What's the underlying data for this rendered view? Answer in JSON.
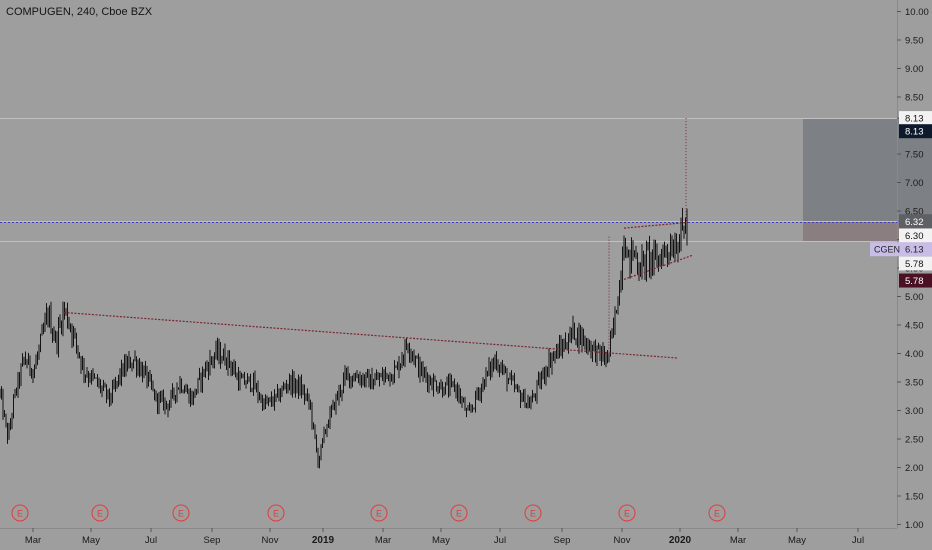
{
  "header": {
    "title": "COMPUGEN, 240, Cboe BZX"
  },
  "colors": {
    "background": "#9e9e9e",
    "candle": "#141414",
    "trendline": "#7a2430",
    "earnings": "#e03c3c",
    "target_zone": "#7b7f84",
    "stop_zone": "#8a7c80",
    "symbol_badge": "#c8bde6",
    "last_price_badge": "#0d1a2b",
    "stop_badge": "#4a1024"
  },
  "chart_data": {
    "type": "candlestick",
    "symbol": "CGEN",
    "x_ticks": [
      "Mar",
      "May",
      "Jul",
      "Sep",
      "Nov",
      "2019",
      "Mar",
      "May",
      "Jul",
      "Sep",
      "Nov",
      "2020",
      "Mar",
      "May",
      "Jul"
    ],
    "y_ticks": [
      "10.00",
      "9.50",
      "9.00",
      "8.50",
      "8.13",
      "7.50",
      "7.00",
      "6.50",
      "6.00",
      "5.50",
      "5.00",
      "4.50",
      "4.00",
      "3.50",
      "3.00",
      "2.50",
      "2.00",
      "1.50",
      "1.00"
    ],
    "ylim": [
      1.0,
      10.0
    ],
    "price_path": [
      [
        0,
        3.3
      ],
      [
        8,
        2.5
      ],
      [
        14,
        3.2
      ],
      [
        24,
        3.9
      ],
      [
        34,
        3.7
      ],
      [
        48,
        4.7
      ],
      [
        56,
        4.2
      ],
      [
        64,
        4.8
      ],
      [
        74,
        4.3
      ],
      [
        84,
        3.7
      ],
      [
        96,
        3.5
      ],
      [
        110,
        3.2
      ],
      [
        122,
        3.7
      ],
      [
        134,
        3.9
      ],
      [
        146,
        3.6
      ],
      [
        156,
        3.2
      ],
      [
        168,
        3.1
      ],
      [
        180,
        3.5
      ],
      [
        192,
        3.2
      ],
      [
        204,
        3.7
      ],
      [
        216,
        4.0
      ],
      [
        228,
        3.9
      ],
      [
        240,
        3.5
      ],
      [
        252,
        3.5
      ],
      [
        264,
        3.1
      ],
      [
        276,
        3.2
      ],
      [
        288,
        3.5
      ],
      [
        300,
        3.4
      ],
      [
        310,
        3.1
      ],
      [
        318,
        2.1
      ],
      [
        326,
        2.7
      ],
      [
        334,
        3.1
      ],
      [
        346,
        3.6
      ],
      [
        358,
        3.6
      ],
      [
        372,
        3.5
      ],
      [
        384,
        3.6
      ],
      [
        396,
        3.7
      ],
      [
        408,
        4.2
      ],
      [
        420,
        3.7
      ],
      [
        432,
        3.5
      ],
      [
        444,
        3.4
      ],
      [
        456,
        3.4
      ],
      [
        468,
        2.9
      ],
      [
        478,
        3.3
      ],
      [
        486,
        3.6
      ],
      [
        496,
        3.9
      ],
      [
        506,
        3.6
      ],
      [
        518,
        3.3
      ],
      [
        530,
        3.1
      ],
      [
        540,
        3.5
      ],
      [
        550,
        3.9
      ],
      [
        562,
        4.1
      ],
      [
        574,
        4.4
      ],
      [
        586,
        4.2
      ],
      [
        598,
        4.0
      ],
      [
        608,
        3.9
      ],
      [
        614,
        4.5
      ],
      [
        620,
        5.3
      ],
      [
        624,
        6.1
      ],
      [
        628,
        5.6
      ],
      [
        634,
        5.8
      ],
      [
        640,
        5.5
      ],
      [
        648,
        5.7
      ],
      [
        656,
        5.6
      ],
      [
        664,
        5.8
      ],
      [
        672,
        5.9
      ],
      [
        678,
        6.0
      ],
      [
        684,
        6.2
      ],
      [
        688,
        6.3
      ]
    ],
    "volatility": 0.08,
    "levels": [
      {
        "price": 8.13,
        "label": "8.13",
        "style": "solid",
        "color": "#c0c0c0"
      },
      {
        "price": 6.32,
        "label": "6.32",
        "style": "solid",
        "color": "#c0c0c0"
      },
      {
        "price": 6.3,
        "label": "6.30",
        "style": "dashed",
        "color": "#3a3ac8"
      },
      {
        "price": 5.97,
        "label": "",
        "style": "solid",
        "color": "#c0c0c0"
      }
    ],
    "price_badges": [
      {
        "text": "8.13",
        "price": 8.13,
        "style": "light"
      },
      {
        "text": "8.13",
        "price": 7.9,
        "style": "dark"
      },
      {
        "text": "6.32",
        "price": 6.32,
        "style": "grey"
      },
      {
        "text": "6.30",
        "price": 6.07,
        "style": "light"
      },
      {
        "text": "CGEN",
        "price": 5.83,
        "style": "symbol",
        "value": "6.13"
      },
      {
        "text": "5.78",
        "price": 5.58,
        "style": "light"
      },
      {
        "text": "5.78",
        "price": 5.28,
        "style": "stop"
      }
    ],
    "position_tool": {
      "entry": 6.32,
      "target": 8.13,
      "stop": 5.97
    },
    "trendlines": [
      {
        "from": [
          64,
          4.72
        ],
        "to": [
          678,
          3.92
        ]
      },
      {
        "from": [
          624,
          6.2
        ],
        "to": [
          688,
          6.3
        ]
      },
      {
        "from": [
          624,
          5.3
        ],
        "to": [
          692,
          5.72
        ]
      }
    ],
    "vertical_markers": [
      {
        "x": 609,
        "from": 3.95,
        "to": 6.05
      },
      {
        "x": 686,
        "from": 6.32,
        "to": 8.13
      }
    ],
    "earnings": {
      "label": "E",
      "positions": [
        20,
        100,
        181,
        276,
        379,
        459,
        533,
        627,
        717
      ]
    }
  }
}
